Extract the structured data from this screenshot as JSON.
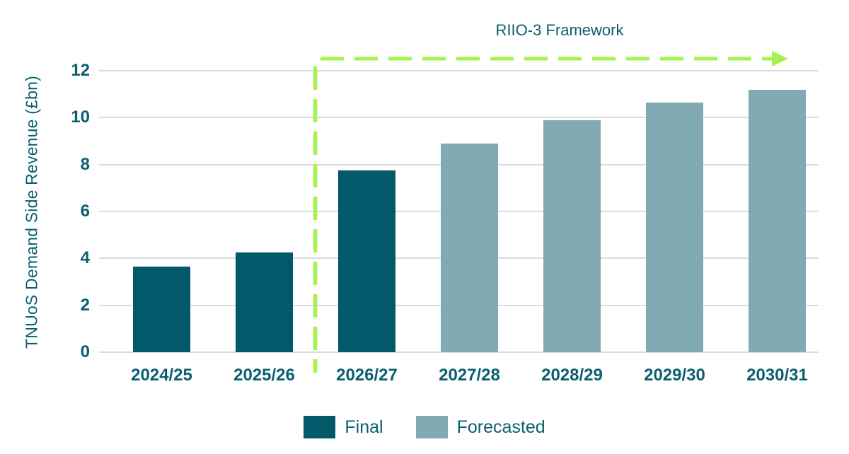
{
  "chart_data": {
    "type": "bar",
    "title": "",
    "xlabel": "",
    "ylabel": "TNUoS Demand Side Revenue (£bn)",
    "categories": [
      "2024/25",
      "2025/26",
      "2026/27",
      "2027/28",
      "2028/29",
      "2029/30",
      "2030/31"
    ],
    "series": [
      {
        "name": "Final",
        "color": "#02596a",
        "values": [
          3.65,
          4.25,
          7.75,
          null,
          null,
          null,
          null
        ]
      },
      {
        "name": "Forecasted",
        "color": "#81aab2",
        "values": [
          null,
          null,
          null,
          8.9,
          9.9,
          10.65,
          11.2
        ]
      }
    ],
    "ylim": [
      0,
      12
    ],
    "yticks": [
      0,
      2,
      4,
      6,
      8,
      10,
      12
    ],
    "grid": true,
    "legend_position": "bottom",
    "legend": [
      "Final",
      "Forecasted"
    ],
    "annotation": {
      "label": "RIIO-3 Framework",
      "color": "#a6f24f",
      "style": "dashed vertical divider before 2026/27 with dashed arrow pointing right",
      "covers_categories": [
        "2026/27",
        "2027/28",
        "2028/29",
        "2029/30",
        "2030/31"
      ]
    },
    "colors": {
      "text": "#0b5f70",
      "grid": "#dbdbdb",
      "background": "#ffffff"
    }
  }
}
